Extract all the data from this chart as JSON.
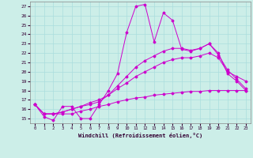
{
  "xlabel": "Windchill (Refroidissement éolien,°C)",
  "bg_color": "#cceee8",
  "grid_color": "#aadddd",
  "line_color": "#cc00cc",
  "xlim": [
    -0.5,
    23.5
  ],
  "ylim": [
    14.5,
    27.5
  ],
  "yticks": [
    15,
    16,
    17,
    18,
    19,
    20,
    21,
    22,
    23,
    24,
    25,
    26,
    27
  ],
  "xticks": [
    0,
    1,
    2,
    3,
    4,
    5,
    6,
    7,
    8,
    9,
    10,
    11,
    12,
    13,
    14,
    15,
    16,
    17,
    18,
    19,
    20,
    21,
    22,
    23
  ],
  "series": [
    [
      16.5,
      15.2,
      14.8,
      16.3,
      16.3,
      15.0,
      15.0,
      16.5,
      18.0,
      19.8,
      24.2,
      27.0,
      27.2,
      23.2,
      26.3,
      25.5,
      22.4,
      22.2,
      22.5,
      23.0,
      22.0,
      19.8,
      19.0,
      18.0
    ],
    [
      16.5,
      15.5,
      15.5,
      15.5,
      15.5,
      15.8,
      16.0,
      16.3,
      16.5,
      16.8,
      17.0,
      17.2,
      17.3,
      17.5,
      17.6,
      17.7,
      17.8,
      17.9,
      17.9,
      18.0,
      18.0,
      18.0,
      18.0,
      18.0
    ],
    [
      16.5,
      15.5,
      15.5,
      15.7,
      16.0,
      16.3,
      16.5,
      16.8,
      17.5,
      18.5,
      19.5,
      20.5,
      21.2,
      21.7,
      22.2,
      22.5,
      22.5,
      22.3,
      22.5,
      23.0,
      21.8,
      20.2,
      19.2,
      18.2
    ],
    [
      16.5,
      15.5,
      15.5,
      15.7,
      16.0,
      16.3,
      16.7,
      17.0,
      17.5,
      18.2,
      18.8,
      19.5,
      20.0,
      20.5,
      21.0,
      21.3,
      21.5,
      21.5,
      21.7,
      22.0,
      21.5,
      20.0,
      19.5,
      19.0
    ]
  ]
}
